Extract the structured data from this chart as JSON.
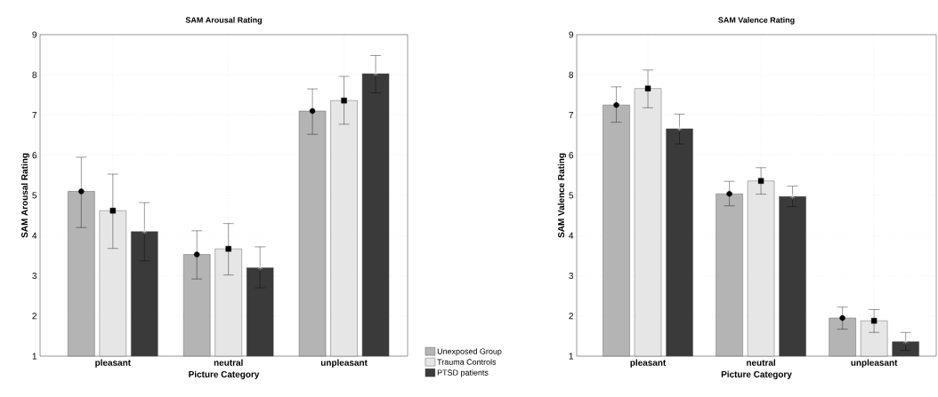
{
  "chart_data": [
    {
      "type": "bar",
      "title": "SAM Arousal Rating",
      "xlabel": "Picture Category",
      "ylabel": "SAM Arousal Rating",
      "categories": [
        "pleasant",
        "neutral",
        "unpleasant"
      ],
      "series": [
        {
          "name": "Unexposed Group",
          "color": "#b4b4b4",
          "values": [
            5.1,
            3.53,
            7.1
          ],
          "errors": [
            [
              4.2,
              5.95
            ],
            [
              2.92,
              4.12
            ],
            [
              6.52,
              7.65
            ]
          ]
        },
        {
          "name": "Trauma Controls",
          "color": "#e6e6e6",
          "values": [
            4.62,
            3.67,
            7.36
          ],
          "errors": [
            [
              3.68,
              5.53
            ],
            [
              3.02,
              4.3
            ],
            [
              6.77,
              7.96
            ]
          ]
        },
        {
          "name": "PTSD patients",
          "color": "#3a3a3a",
          "values": [
            4.1,
            3.2,
            8.03
          ],
          "errors": [
            [
              3.37,
              4.82
            ],
            [
              2.7,
              3.72
            ],
            [
              7.55,
              8.48
            ]
          ]
        },
        {
          "type": "scatter",
          "color": "#000000",
          "marker": "circle",
          "x": [
            "pleasant",
            "neutral",
            "unpleasant"
          ],
          "values": [
            5.1,
            3.53,
            7.1
          ]
        },
        {
          "type": "scatter",
          "color": "#000000",
          "marker": "square",
          "x": [
            "pleasant",
            "neutral",
            "unpleasant"
          ],
          "values": [
            4.62,
            3.67,
            7.36
          ]
        },
        {
          "type": "scatter",
          "color": "#ffffff",
          "marker": "cross",
          "x": [
            "pleasant",
            "neutral",
            "unpleasant"
          ],
          "values": [
            4.1,
            3.2,
            8.03
          ]
        }
      ],
      "ylim": [
        1,
        9
      ],
      "yticks": [
        1,
        2,
        3,
        4,
        5,
        6,
        7,
        8,
        9
      ],
      "grid": true,
      "legend": "bottom right"
    },
    {
      "type": "bar",
      "title": "SAM Valence Rating",
      "xlabel": "Picture Category",
      "ylabel": "SAM Valence Rating",
      "categories": [
        "pleasant",
        "neutral",
        "unpleasant"
      ],
      "series": [
        {
          "color": "#b4b4b4",
          "values": [
            7.25,
            5.04,
            1.95
          ],
          "errors": [
            [
              6.82,
              7.7
            ],
            [
              4.74,
              5.35
            ],
            [
              1.67,
              2.22
            ]
          ]
        },
        {
          "color": "#e6e6e6",
          "values": [
            7.66,
            5.36,
            1.88
          ],
          "errors": [
            [
              7.18,
              8.12
            ],
            [
              5.03,
              5.69
            ],
            [
              1.59,
              2.16
            ]
          ]
        },
        {
          "color": "#3a3a3a",
          "values": [
            6.66,
            4.97,
            1.36
          ],
          "errors": [
            [
              6.28,
              7.02
            ],
            [
              4.72,
              5.23
            ],
            [
              1.14,
              1.59
            ]
          ]
        },
        {
          "type": "scatter",
          "color": "#000000",
          "marker": "circle",
          "x": [
            "pleasant",
            "neutral",
            "unpleasant"
          ],
          "values": [
            7.25,
            5.04,
            1.95
          ]
        },
        {
          "type": "scatter",
          "color": "#000000",
          "marker": "square",
          "x": [
            "pleasant",
            "neutral",
            "unpleasant"
          ],
          "values": [
            7.66,
            5.36,
            1.88
          ]
        },
        {
          "type": "scatter",
          "color": "#ffffff",
          "marker": "cross",
          "x": [
            "pleasant",
            "neutral",
            "unpleasant"
          ],
          "values": [
            6.66,
            4.97,
            1.36
          ]
        }
      ],
      "ylim": [
        1,
        9
      ],
      "yticks": [
        1,
        2,
        3,
        4,
        5,
        6,
        7,
        8,
        9
      ],
      "grid": true
    }
  ]
}
